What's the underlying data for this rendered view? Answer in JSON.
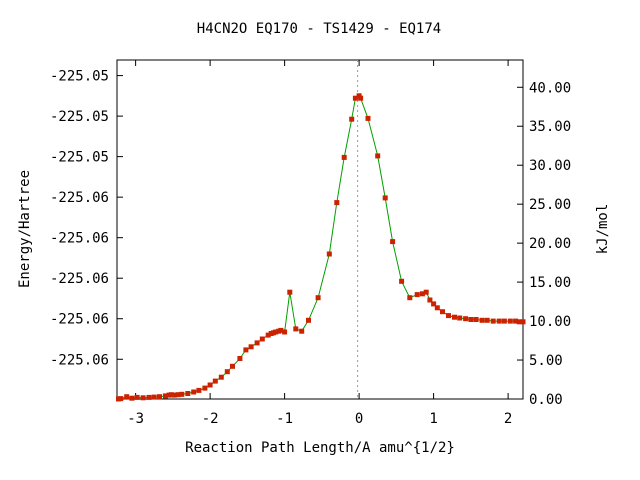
{
  "chart_data": {
    "type": "line",
    "title": "H4CN2O   EQ170 - TS1429 - EQ174",
    "xlabel": "Reaction Path Length/A amu^{1/2}",
    "ylabel_left": "Energy/Hartree",
    "ylabel_right": "kJ/mol",
    "x_ticks": [
      "-3",
      "-2",
      "-1",
      "0",
      "1",
      "2"
    ],
    "x_tick_values": [
      -3,
      -2,
      -1,
      0,
      1,
      2
    ],
    "left_ticks": [
      "-225.05",
      "-225.05",
      "-225.05",
      "-225.06",
      "-225.06",
      "-225.06",
      "-225.06",
      "-225.06"
    ],
    "right_ticks": [
      "40.00",
      "35.00",
      "30.00",
      "25.00",
      "20.00",
      "15.00",
      "10.00",
      "5.00",
      "0.00"
    ],
    "right_tick_values": [
      40,
      35,
      30,
      25,
      20,
      15,
      10,
      5,
      0
    ],
    "xlim": [
      -3.25,
      2.2
    ],
    "ylim_kjmol": [
      0,
      43.5
    ],
    "ts_marker_x": -0.02,
    "line_color": "#00a000",
    "marker_color": "#cc2200",
    "axis_color": "#000000",
    "series": [
      {
        "x": [
          -3.23,
          -3.2,
          -3.12,
          -3.05,
          -2.98,
          -2.9,
          -2.82,
          -2.75,
          -2.68,
          -2.6,
          -2.55,
          -2.52,
          -2.48,
          -2.43,
          -2.38,
          -2.3,
          -2.22,
          -2.15,
          -2.07,
          -2.0,
          -1.93,
          -1.85,
          -1.77,
          -1.7,
          -1.6,
          -1.52,
          -1.45,
          -1.37,
          -1.3,
          -1.22,
          -1.18,
          -1.15,
          -1.12,
          -1.08,
          -1.05,
          -1.0,
          -0.93,
          -0.85,
          -0.77,
          -0.68,
          -0.55,
          -0.4,
          -0.3,
          -0.2,
          -0.1,
          -0.05,
          0.0,
          0.02,
          0.12,
          0.25,
          0.35,
          0.45,
          0.57,
          0.68,
          0.78,
          0.85,
          0.9,
          0.95,
          1.0,
          1.05,
          1.12,
          1.2,
          1.28,
          1.35,
          1.43,
          1.5,
          1.57,
          1.65,
          1.72,
          1.8,
          1.88,
          1.95,
          2.03,
          2.1,
          2.15,
          2.2
        ],
        "y": [
          0.0,
          0.05,
          0.3,
          0.1,
          0.2,
          0.15,
          0.2,
          0.25,
          0.3,
          0.4,
          0.5,
          0.55,
          0.5,
          0.55,
          0.6,
          0.7,
          0.9,
          1.1,
          1.4,
          1.8,
          2.3,
          2.8,
          3.5,
          4.2,
          5.2,
          6.3,
          6.7,
          7.2,
          7.7,
          8.2,
          8.4,
          8.5,
          8.6,
          8.7,
          8.8,
          8.6,
          13.7,
          9.0,
          8.7,
          10.1,
          13.0,
          18.6,
          25.2,
          31.0,
          35.9,
          38.6,
          38.9,
          38.6,
          36.0,
          31.2,
          25.8,
          20.2,
          15.1,
          13.0,
          13.4,
          13.5,
          13.7,
          12.7,
          12.2,
          11.7,
          11.2,
          10.7,
          10.5,
          10.4,
          10.3,
          10.2,
          10.2,
          10.1,
          10.1,
          10.0,
          10.0,
          10.0,
          10.0,
          10.0,
          9.9,
          9.9
        ]
      }
    ]
  }
}
